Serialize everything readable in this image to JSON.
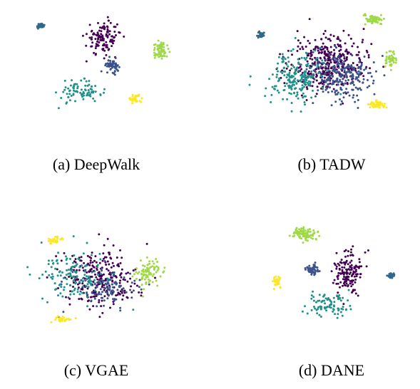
{
  "figure": {
    "palette": [
      "#440154",
      "#3b528b",
      "#21918c",
      "#5ec962",
      "#9fd948",
      "#fde725"
    ],
    "chart_data": [
      {
        "type": "scatter",
        "caption": "(a) DeepWalk",
        "clusters": [
          {
            "label": "cluster 1",
            "color": "#440154",
            "center": [
              0.05,
              0.55
            ],
            "spread": [
              0.22,
              0.28
            ],
            "count": 120
          },
          {
            "label": "cluster 2",
            "color": "#3b528b",
            "center": [
              0.15,
              0.1
            ],
            "spread": [
              0.1,
              0.1
            ],
            "count": 55
          },
          {
            "label": "cluster 3",
            "color": "#21918c",
            "center": [
              -0.25,
              -0.35
            ],
            "spread": [
              0.28,
              0.18
            ],
            "count": 85
          },
          {
            "label": "cluster 4",
            "color": "#9fd948",
            "center": [
              0.78,
              0.35
            ],
            "spread": [
              0.1,
              0.14
            ],
            "count": 70
          },
          {
            "label": "cluster 5",
            "color": "#fde725",
            "center": [
              0.45,
              -0.45
            ],
            "spread": [
              0.08,
              0.06
            ],
            "count": 35
          },
          {
            "label": "cluster 6",
            "color": "#31688e",
            "center": [
              -0.75,
              0.75
            ],
            "spread": [
              0.04,
              0.04
            ],
            "count": 40
          }
        ]
      },
      {
        "type": "scatter",
        "caption": "(b) TADW",
        "clusters": [
          {
            "label": "cluster 1",
            "color": "#440154",
            "center": [
              0.0,
              0.15
            ],
            "spread": [
              0.45,
              0.45
            ],
            "count": 380
          },
          {
            "label": "cluster 2",
            "color": "#3b528b",
            "center": [
              0.2,
              -0.1
            ],
            "spread": [
              0.38,
              0.4
            ],
            "count": 220
          },
          {
            "label": "cluster 3",
            "color": "#21918c",
            "center": [
              -0.4,
              -0.1
            ],
            "spread": [
              0.35,
              0.4
            ],
            "count": 200
          },
          {
            "label": "cluster 4",
            "color": "#9fd948",
            "center": [
              0.58,
              0.85
            ],
            "spread": [
              0.1,
              0.08
            ],
            "count": 60
          },
          {
            "label": "cluster 5",
            "color": "#9fd948",
            "center": [
              0.8,
              0.2
            ],
            "spread": [
              0.08,
              0.14
            ],
            "count": 50
          },
          {
            "label": "cluster 6",
            "color": "#fde725",
            "center": [
              0.62,
              -0.55
            ],
            "spread": [
              0.1,
              0.06
            ],
            "count": 50
          },
          {
            "label": "cluster 7",
            "color": "#31688e",
            "center": [
              -0.85,
              0.6
            ],
            "spread": [
              0.04,
              0.04
            ],
            "count": 40
          }
        ]
      },
      {
        "type": "scatter",
        "caption": "(c) VGAE",
        "clusters": [
          {
            "label": "cluster 1",
            "color": "#440154",
            "center": [
              0.0,
              0.0
            ],
            "spread": [
              0.5,
              0.5
            ],
            "count": 260
          },
          {
            "label": "cluster 2",
            "color": "#21918c",
            "center": [
              -0.3,
              0.0
            ],
            "spread": [
              0.45,
              0.45
            ],
            "count": 150
          },
          {
            "label": "cluster 3",
            "color": "#3b528b",
            "center": [
              0.1,
              -0.2
            ],
            "spread": [
              0.4,
              0.35
            ],
            "count": 90
          },
          {
            "label": "cluster 4",
            "color": "#9fd948",
            "center": [
              0.6,
              0.1
            ],
            "spread": [
              0.18,
              0.25
            ],
            "count": 80
          },
          {
            "label": "cluster 5",
            "color": "#fde725",
            "center": [
              -0.55,
              0.65
            ],
            "spread": [
              0.1,
              0.06
            ],
            "count": 30
          },
          {
            "label": "cluster 6",
            "color": "#fde725",
            "center": [
              -0.45,
              -0.7
            ],
            "spread": [
              0.1,
              0.05
            ],
            "count": 30
          }
        ]
      },
      {
        "type": "scatter",
        "caption": "(d) DANE",
        "clusters": [
          {
            "label": "cluster 1",
            "color": "#9fd948",
            "center": [
              -0.3,
              0.75
            ],
            "spread": [
              0.14,
              0.12
            ],
            "count": 100
          },
          {
            "label": "cluster 2",
            "color": "#440154",
            "center": [
              0.25,
              0.1
            ],
            "spread": [
              0.18,
              0.4
            ],
            "count": 150
          },
          {
            "label": "cluster 3",
            "color": "#21918c",
            "center": [
              0.0,
              -0.45
            ],
            "spread": [
              0.25,
              0.18
            ],
            "count": 90
          },
          {
            "label": "cluster 4",
            "color": "#3b528b",
            "center": [
              -0.2,
              0.15
            ],
            "spread": [
              0.08,
              0.08
            ],
            "count": 50
          },
          {
            "label": "cluster 5",
            "color": "#fde725",
            "center": [
              -0.65,
              -0.05
            ],
            "spread": [
              0.06,
              0.1
            ],
            "count": 35
          },
          {
            "label": "cluster 6",
            "color": "#31688e",
            "center": [
              0.8,
              0.05
            ],
            "spread": [
              0.04,
              0.04
            ],
            "count": 45
          }
        ]
      }
    ]
  }
}
